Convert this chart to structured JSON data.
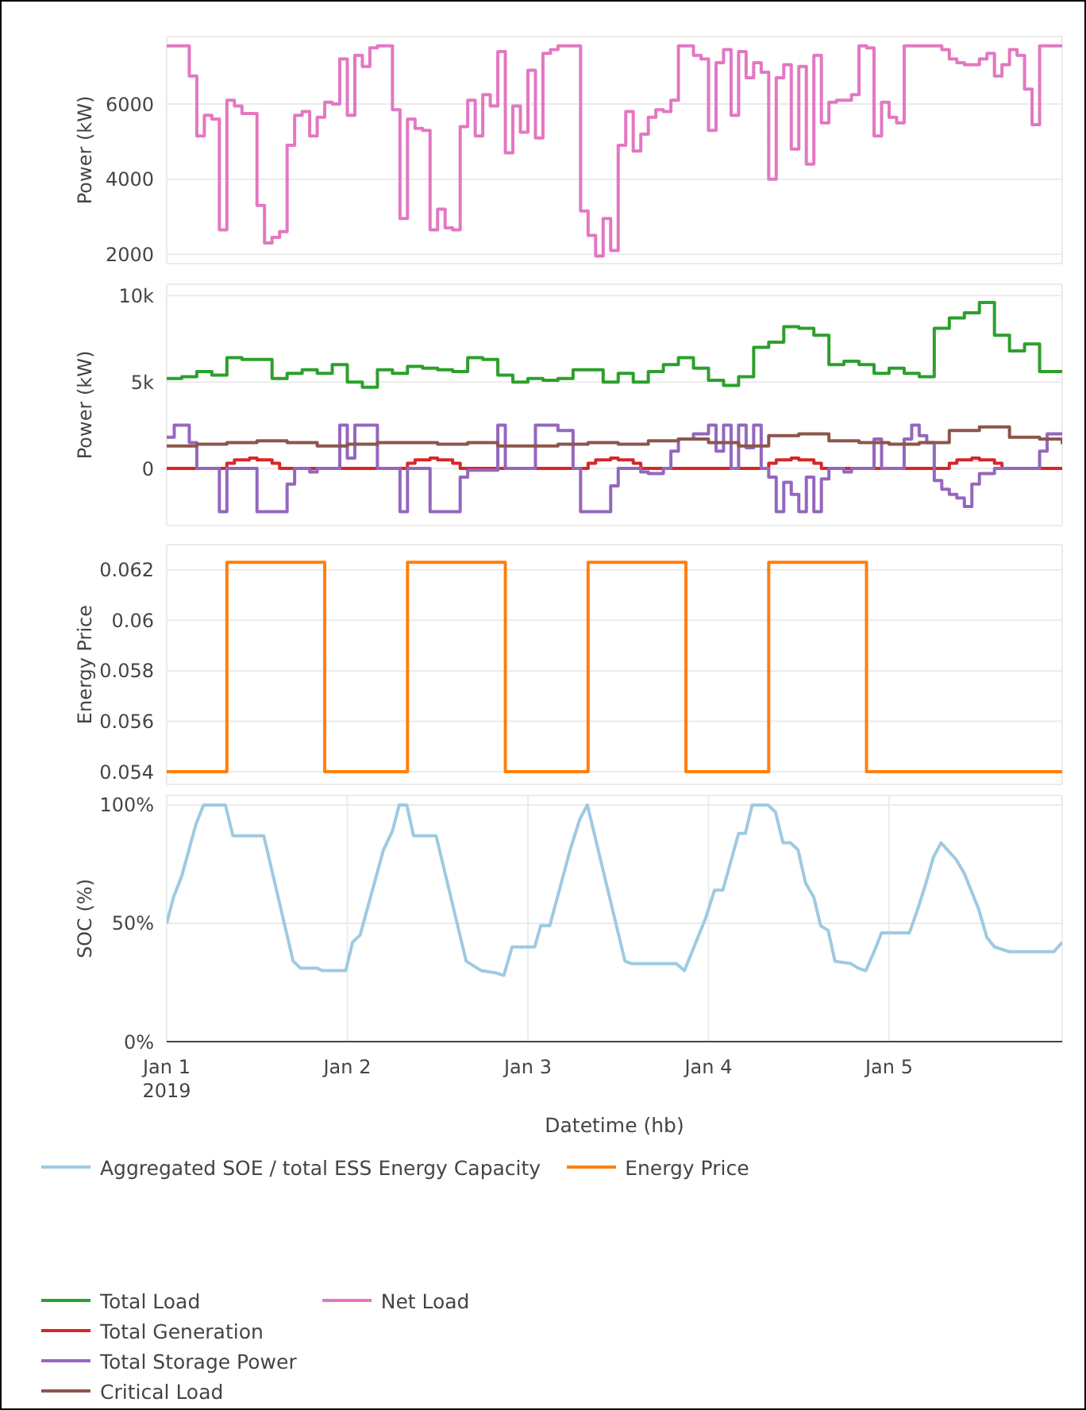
{
  "chart_data": [
    {
      "type": "step",
      "ylabel": "Power (kW)",
      "x": [
        "2019-01-01T00:00",
        "2019-01-01T01:00",
        "2019-01-01T02:00",
        "2019-01-01T03:00",
        "2019-01-01T04:00",
        "2019-01-01T05:00",
        "2019-01-01T06:00",
        "2019-01-01T07:00",
        "2019-01-01T08:00",
        "2019-01-01T09:00",
        "2019-01-01T10:00",
        "2019-01-01T11:00",
        "2019-01-01T12:00",
        "2019-01-01T13:00",
        "2019-01-01T14:00",
        "2019-01-01T15:00",
        "2019-01-01T16:00",
        "2019-01-01T17:00",
        "2019-01-01T18:00",
        "2019-01-01T19:00",
        "2019-01-01T20:00",
        "2019-01-01T21:00",
        "2019-01-01T22:00",
        "2019-01-01T23:00",
        "2019-01-02T00:00",
        "2019-01-02T01:00",
        "2019-01-02T02:00",
        "2019-01-02T03:00",
        "2019-01-02T04:00",
        "2019-01-02T05:00",
        "2019-01-02T06:00",
        "2019-01-02T07:00",
        "2019-01-02T08:00",
        "2019-01-02T09:00",
        "2019-01-02T10:00",
        "2019-01-02T11:00",
        "2019-01-02T12:00",
        "2019-01-02T13:00",
        "2019-01-02T14:00",
        "2019-01-02T15:00",
        "2019-01-02T16:00",
        "2019-01-02T17:00",
        "2019-01-02T18:00",
        "2019-01-02T19:00",
        "2019-01-02T20:00",
        "2019-01-02T21:00",
        "2019-01-02T22:00",
        "2019-01-02T23:00",
        "2019-01-03T00:00",
        "2019-01-03T01:00",
        "2019-01-03T02:00",
        "2019-01-03T03:00",
        "2019-01-03T04:00",
        "2019-01-03T05:00",
        "2019-01-03T06:00",
        "2019-01-03T07:00",
        "2019-01-03T08:00",
        "2019-01-03T09:00",
        "2019-01-03T10:00",
        "2019-01-03T11:00",
        "2019-01-03T12:00",
        "2019-01-03T13:00",
        "2019-01-03T14:00",
        "2019-01-03T15:00",
        "2019-01-03T16:00",
        "2019-01-03T17:00",
        "2019-01-03T18:00",
        "2019-01-03T19:00",
        "2019-01-03T20:00",
        "2019-01-03T21:00",
        "2019-01-03T22:00",
        "2019-01-03T23:00",
        "2019-01-04T00:00",
        "2019-01-04T01:00",
        "2019-01-04T02:00",
        "2019-01-04T03:00",
        "2019-01-04T04:00",
        "2019-01-04T05:00",
        "2019-01-04T06:00",
        "2019-01-04T07:00",
        "2019-01-04T08:00",
        "2019-01-04T09:00",
        "2019-01-04T10:00",
        "2019-01-04T11:00",
        "2019-01-04T12:00",
        "2019-01-04T13:00",
        "2019-01-04T14:00",
        "2019-01-04T15:00",
        "2019-01-04T16:00",
        "2019-01-04T17:00",
        "2019-01-04T18:00",
        "2019-01-04T19:00",
        "2019-01-04T20:00",
        "2019-01-04T21:00",
        "2019-01-04T22:00",
        "2019-01-04T23:00",
        "2019-01-05T00:00",
        "2019-01-05T01:00",
        "2019-01-05T02:00",
        "2019-01-05T03:00",
        "2019-01-05T04:00",
        "2019-01-05T05:00",
        "2019-01-05T06:00",
        "2019-01-05T07:00",
        "2019-01-05T08:00",
        "2019-01-05T09:00",
        "2019-01-05T10:00",
        "2019-01-05T11:00",
        "2019-01-05T12:00",
        "2019-01-05T13:00",
        "2019-01-05T14:00",
        "2019-01-05T15:00",
        "2019-01-05T16:00",
        "2019-01-05T17:00",
        "2019-01-05T18:00",
        "2019-01-05T19:00",
        "2019-01-05T20:00",
        "2019-01-05T21:00",
        "2019-01-05T22:00",
        "2019-01-05T23:00"
      ],
      "series": [
        {
          "name": "Net Load",
          "color": "#e377c2",
          "values": [
            7550,
            7550,
            7550,
            6750,
            5150,
            5700,
            5600,
            2650,
            6100,
            5950,
            5750,
            5750,
            3300,
            2300,
            2450,
            2600,
            4900,
            5700,
            5800,
            5150,
            5650,
            6050,
            6000,
            7200,
            5700,
            7300,
            7000,
            7500,
            7550,
            7550,
            5850,
            2950,
            5600,
            5350,
            5300,
            2650,
            3200,
            2700,
            2650,
            5400,
            6100,
            5150,
            6250,
            5950,
            7400,
            4700,
            5950,
            5250,
            6900,
            5100,
            7350,
            7450,
            7550,
            7550,
            7550,
            3150,
            2500,
            1950,
            2950,
            2100,
            4900,
            5800,
            4750,
            5200,
            5650,
            5850,
            5800,
            6100,
            7550,
            7550,
            7300,
            7200,
            5300,
            7100,
            7450,
            5700,
            7400,
            6700,
            7100,
            6850,
            4000,
            6700,
            7050,
            4800,
            7000,
            4400,
            7300,
            5500,
            6050,
            6100,
            6100,
            6250,
            7550,
            7500,
            5150,
            6050,
            5650,
            5500,
            7550,
            7550,
            7550,
            7550,
            7550,
            7450,
            7200,
            7100,
            7050,
            7050,
            7200,
            7350,
            6750,
            7050,
            7450,
            7300,
            6400,
            5450,
            7550,
            7550,
            7550,
            7550
          ]
        }
      ],
      "xlim": [
        "2019-01-01T00:00",
        "2019-01-05T23:00"
      ],
      "xticks": [
        {
          "value": "2019-01-01",
          "label": null
        },
        {
          "value": "2019-01-02",
          "label": null
        },
        {
          "value": "2019-01-03",
          "label": null
        },
        {
          "value": "2019-01-04",
          "label": null
        },
        {
          "value": "2019-01-05",
          "label": null
        }
      ],
      "ylim": [
        1750,
        7800
      ],
      "yticks": [
        2000,
        4000,
        6000
      ],
      "grid": true,
      "legend": "bottom",
      "tick_labels": "y"
    },
    {
      "type": "step",
      "ylabel": "Power (kW)",
      "series": [
        {
          "name": "Total Load",
          "color": "#2ca02c",
          "x": [
            "2019-01-01T00:00",
            "2019-01-01T02:00",
            "2019-01-01T04:00",
            "2019-01-01T06:00",
            "2019-01-01T08:00",
            "2019-01-01T10:00",
            "2019-01-01T12:00",
            "2019-01-01T14:00",
            "2019-01-01T16:00",
            "2019-01-01T18:00",
            "2019-01-01T20:00",
            "2019-01-01T22:00",
            "2019-01-02T00:00",
            "2019-01-02T02:00",
            "2019-01-02T04:00",
            "2019-01-02T06:00",
            "2019-01-02T08:00",
            "2019-01-02T10:00",
            "2019-01-02T12:00",
            "2019-01-02T14:00",
            "2019-01-02T16:00",
            "2019-01-02T18:00",
            "2019-01-02T20:00",
            "2019-01-02T22:00",
            "2019-01-03T00:00",
            "2019-01-03T02:00",
            "2019-01-03T04:00",
            "2019-01-03T06:00",
            "2019-01-03T08:00",
            "2019-01-03T10:00",
            "2019-01-03T12:00",
            "2019-01-03T14:00",
            "2019-01-03T16:00",
            "2019-01-03T18:00",
            "2019-01-03T20:00",
            "2019-01-03T22:00",
            "2019-01-04T00:00",
            "2019-01-04T02:00",
            "2019-01-04T04:00",
            "2019-01-04T06:00",
            "2019-01-04T08:00",
            "2019-01-04T10:00",
            "2019-01-04T12:00",
            "2019-01-04T14:00",
            "2019-01-04T16:00",
            "2019-01-04T18:00",
            "2019-01-04T20:00",
            "2019-01-04T22:00",
            "2019-01-05T00:00",
            "2019-01-05T02:00",
            "2019-01-05T04:00",
            "2019-01-05T06:00",
            "2019-01-05T08:00",
            "2019-01-05T10:00",
            "2019-01-05T12:00",
            "2019-01-05T14:00",
            "2019-01-05T16:00",
            "2019-01-05T18:00",
            "2019-01-05T20:00",
            "2019-01-05T22:00",
            "2019-01-05T23:00"
          ],
          "values": [
            5200,
            5300,
            5600,
            5400,
            6400,
            6300,
            6300,
            5200,
            5500,
            5700,
            5500,
            6000,
            5000,
            4700,
            5700,
            5500,
            5900,
            5800,
            5700,
            5600,
            6400,
            6300,
            5400,
            5000,
            5200,
            5100,
            5200,
            5700,
            5700,
            5000,
            5500,
            5000,
            5600,
            6000,
            6400,
            5800,
            5100,
            4800,
            5300,
            7000,
            7300,
            8200,
            8100,
            7700,
            6000,
            6200,
            6000,
            5500,
            5800,
            5500,
            5300,
            8100,
            8700,
            9000,
            9600,
            7700,
            6800,
            7200,
            5600,
            5600,
            5600
          ]
        },
        {
          "name": "Total Generation",
          "color": "#d62728",
          "x": [
            "2019-01-01T00:00",
            "2019-01-01T08:00",
            "2019-01-01T09:00",
            "2019-01-01T10:00",
            "2019-01-01T11:00",
            "2019-01-01T12:00",
            "2019-01-01T13:00",
            "2019-01-01T14:00",
            "2019-01-01T15:00",
            "2019-01-02T08:00",
            "2019-01-02T09:00",
            "2019-01-02T10:00",
            "2019-01-02T11:00",
            "2019-01-02T12:00",
            "2019-01-02T13:00",
            "2019-01-02T14:00",
            "2019-01-02T15:00",
            "2019-01-03T08:00",
            "2019-01-03T09:00",
            "2019-01-03T10:00",
            "2019-01-03T11:00",
            "2019-01-03T12:00",
            "2019-01-03T13:00",
            "2019-01-03T14:00",
            "2019-01-03T15:00",
            "2019-01-04T08:00",
            "2019-01-04T09:00",
            "2019-01-04T10:00",
            "2019-01-04T11:00",
            "2019-01-04T12:00",
            "2019-01-04T13:00",
            "2019-01-04T14:00",
            "2019-01-04T15:00",
            "2019-01-05T08:00",
            "2019-01-05T09:00",
            "2019-01-05T10:00",
            "2019-01-05T11:00",
            "2019-01-05T12:00",
            "2019-01-05T13:00",
            "2019-01-05T14:00",
            "2019-01-05T15:00",
            "2019-01-05T23:00"
          ],
          "values": [
            0,
            300,
            500,
            500,
            600,
            500,
            500,
            300,
            0,
            300,
            500,
            500,
            600,
            500,
            500,
            300,
            0,
            300,
            500,
            500,
            600,
            500,
            500,
            300,
            0,
            300,
            500,
            500,
            600,
            500,
            500,
            300,
            0,
            300,
            500,
            500,
            600,
            500,
            500,
            300,
            0,
            0
          ]
        },
        {
          "name": "Total Storage Power",
          "color": "#9467bd",
          "x": [
            "2019-01-01T00:00",
            "2019-01-01T01:00",
            "2019-01-01T03:00",
            "2019-01-01T04:00",
            "2019-01-01T07:00",
            "2019-01-01T08:00",
            "2019-01-01T12:00",
            "2019-01-01T16:00",
            "2019-01-01T17:00",
            "2019-01-01T19:00",
            "2019-01-01T20:00",
            "2019-01-01T23:00",
            "2019-01-02T00:00",
            "2019-01-02T01:00",
            "2019-01-02T04:00",
            "2019-01-02T07:00",
            "2019-01-02T08:00",
            "2019-01-02T11:00",
            "2019-01-02T15:00",
            "2019-01-02T16:00",
            "2019-01-02T20:00",
            "2019-01-02T21:00",
            "2019-01-03T01:00",
            "2019-01-03T04:00",
            "2019-01-03T06:00",
            "2019-01-03T07:00",
            "2019-01-03T11:00",
            "2019-01-03T12:00",
            "2019-01-03T15:00",
            "2019-01-03T16:00",
            "2019-01-03T18:00",
            "2019-01-03T19:00",
            "2019-01-03T20:00",
            "2019-01-03T22:00",
            "2019-01-04T00:00",
            "2019-01-04T01:00",
            "2019-01-04T02:00",
            "2019-01-04T03:00",
            "2019-01-04T04:00",
            "2019-01-04T05:00",
            "2019-01-04T06:00",
            "2019-01-04T07:00",
            "2019-01-04T08:00",
            "2019-01-04T09:00",
            "2019-01-04T10:00",
            "2019-01-04T11:00",
            "2019-01-04T12:00",
            "2019-01-04T13:00",
            "2019-01-04T14:00",
            "2019-01-04T15:00",
            "2019-01-04T16:00",
            "2019-01-04T18:00",
            "2019-01-04T19:00",
            "2019-01-04T22:00",
            "2019-01-04T23:00",
            "2019-01-05T02:00",
            "2019-01-05T03:00",
            "2019-01-05T04:00",
            "2019-01-05T05:00",
            "2019-01-05T06:00",
            "2019-01-05T07:00",
            "2019-01-05T08:00",
            "2019-01-05T09:00",
            "2019-01-05T10:00",
            "2019-01-05T11:00",
            "2019-01-05T12:00",
            "2019-01-05T14:00",
            "2019-01-05T20:00",
            "2019-01-05T21:00",
            "2019-01-05T23:00"
          ],
          "values": [
            1800,
            2500,
            1500,
            0,
            -2500,
            0,
            -2500,
            -900,
            0,
            -200,
            0,
            2500,
            600,
            2500,
            0,
            -2500,
            0,
            -2500,
            -500,
            -100,
            2500,
            0,
            2500,
            2200,
            0,
            -2500,
            -1000,
            0,
            -200,
            -300,
            0,
            1000,
            1700,
            2000,
            2500,
            1000,
            2500,
            0,
            2500,
            1200,
            2500,
            0,
            -500,
            -2500,
            -800,
            -1500,
            -2500,
            -500,
            -2500,
            -600,
            0,
            -200,
            0,
            1700,
            0,
            1700,
            2500,
            1900,
            1500,
            -700,
            -1200,
            -1500,
            -1700,
            -2200,
            -900,
            -300,
            0,
            1000,
            2000,
            2000
          ]
        },
        {
          "name": "Critical Load",
          "color": "#8c564b",
          "x": [
            "2019-01-01T00:00",
            "2019-01-01T04:00",
            "2019-01-01T08:00",
            "2019-01-01T12:00",
            "2019-01-01T16:00",
            "2019-01-01T20:00",
            "2019-01-02T00:00",
            "2019-01-02T04:00",
            "2019-01-02T08:00",
            "2019-01-02T12:00",
            "2019-01-02T16:00",
            "2019-01-02T20:00",
            "2019-01-03T00:00",
            "2019-01-03T04:00",
            "2019-01-03T08:00",
            "2019-01-03T12:00",
            "2019-01-03T16:00",
            "2019-01-03T20:00",
            "2019-01-04T00:00",
            "2019-01-04T04:00",
            "2019-01-04T08:00",
            "2019-01-04T12:00",
            "2019-01-04T16:00",
            "2019-01-04T20:00",
            "2019-01-05T00:00",
            "2019-01-05T04:00",
            "2019-01-05T08:00",
            "2019-01-05T12:00",
            "2019-01-05T16:00",
            "2019-01-05T20:00",
            "2019-01-05T23:00"
          ],
          "values": [
            1300,
            1400,
            1500,
            1600,
            1500,
            1300,
            1400,
            1500,
            1500,
            1400,
            1500,
            1300,
            1300,
            1400,
            1500,
            1400,
            1600,
            1700,
            1500,
            1300,
            1900,
            2000,
            1600,
            1500,
            1400,
            1500,
            2200,
            2400,
            1800,
            1700,
            1400
          ]
        }
      ],
      "xlim": [
        "2019-01-01T00:00",
        "2019-01-05T23:00"
      ],
      "xticks": [
        {
          "value": "2019-01-01",
          "label": null
        },
        {
          "value": "2019-01-02",
          "label": null
        },
        {
          "value": "2019-01-03",
          "label": null
        },
        {
          "value": "2019-01-04",
          "label": null
        },
        {
          "value": "2019-01-05",
          "label": null
        }
      ],
      "ylim": [
        -3300,
        10650
      ],
      "yticks": [
        {
          "value": 0,
          "label": "0"
        },
        {
          "value": 5000,
          "label": "5k"
        },
        {
          "value": 10000,
          "label": "10k"
        }
      ],
      "grid": true,
      "legend": "bottom",
      "tick_labels": "y"
    },
    {
      "type": "step",
      "ylabel": "Energy Price",
      "series": [
        {
          "name": "Energy Price",
          "color": "#ff7f0e",
          "x": [
            "2019-01-01T00:00",
            "2019-01-01T08:00",
            "2019-01-01T21:00",
            "2019-01-02T08:00",
            "2019-01-02T21:00",
            "2019-01-03T08:00",
            "2019-01-03T21:00",
            "2019-01-04T08:00",
            "2019-01-04T21:00",
            "2019-01-05T23:00"
          ],
          "values": [
            0.054,
            0.0623,
            0.054,
            0.0623,
            0.054,
            0.0623,
            0.054,
            0.0623,
            0.054,
            0.054
          ]
        }
      ],
      "xlim": [
        "2019-01-01T00:00",
        "2019-01-05T23:00"
      ],
      "xticks": [
        {
          "value": "2019-01-01",
          "label": null
        },
        {
          "value": "2019-01-02",
          "label": null
        },
        {
          "value": "2019-01-03",
          "label": null
        },
        {
          "value": "2019-01-04",
          "label": null
        },
        {
          "value": "2019-01-05",
          "label": null
        }
      ],
      "ylim": [
        0.0535,
        0.063
      ],
      "yticks": [
        0.054,
        0.056,
        0.058,
        0.06,
        0.062
      ],
      "grid": true,
      "legend": "bottom",
      "tick_labels": "y"
    },
    {
      "type": "line",
      "ylabel": "SOC (%)",
      "xlabel": "Datetime (hb)",
      "series": [
        {
          "name": "Aggregated SOE / total ESS Energy Capacity",
          "color": "#9ecae1",
          "x": [
            "2019-01-01T00:00",
            "2019-01-01T00:54",
            "2019-01-01T02:00",
            "2019-01-01T03:54",
            "2019-01-01T04:54",
            "2019-01-01T07:48",
            "2019-01-01T08:48",
            "2019-01-01T12:54",
            "2019-01-01T16:48",
            "2019-01-01T17:48",
            "2019-01-01T20:00",
            "2019-01-01T20:42",
            "2019-01-01T23:48",
            "2019-01-02T00:42",
            "2019-01-02T01:42",
            "2019-01-02T04:48",
            "2019-01-02T06:00",
            "2019-01-02T06:54",
            "2019-01-02T07:54",
            "2019-01-02T08:48",
            "2019-01-02T11:48",
            "2019-01-02T15:48",
            "2019-01-02T17:48",
            "2019-01-02T19:48",
            "2019-01-02T20:48",
            "2019-01-02T21:54",
            "2019-01-03T00:54",
            "2019-01-03T01:42",
            "2019-01-03T02:54",
            "2019-01-03T05:42",
            "2019-01-03T06:54",
            "2019-01-03T07:54",
            "2019-01-03T12:54",
            "2019-01-03T13:42",
            "2019-01-03T19:42",
            "2019-01-03T20:48",
            "2019-01-03T23:36",
            "2019-01-04T00:48",
            "2019-01-04T01:54",
            "2019-01-04T04:00",
            "2019-01-04T04:54",
            "2019-01-04T05:48",
            "2019-01-04T07:54",
            "2019-01-04T08:54",
            "2019-01-04T09:54",
            "2019-01-04T10:54",
            "2019-01-04T11:54",
            "2019-01-04T12:54",
            "2019-01-04T14:00",
            "2019-01-04T14:54",
            "2019-01-04T15:54",
            "2019-01-04T16:48",
            "2019-01-04T18:54",
            "2019-01-04T19:54",
            "2019-01-04T20:54",
            "2019-01-04T22:00",
            "2019-01-04T23:00",
            "2019-01-05T02:42",
            "2019-01-05T03:48",
            "2019-01-05T04:54",
            "2019-01-05T05:54",
            "2019-01-05T06:54",
            "2019-01-05T08:54",
            "2019-01-05T10:00",
            "2019-01-05T11:54",
            "2019-01-05T13:00",
            "2019-01-05T14:00",
            "2019-01-05T16:00",
            "2019-01-05T21:54",
            "2019-01-05T23:00"
          ],
          "values": [
            50,
            61,
            70,
            92,
            100,
            100,
            87,
            87,
            34,
            31,
            31,
            30,
            30,
            42,
            45,
            81,
            89,
            100,
            100,
            87,
            87,
            34,
            30,
            29,
            28,
            40,
            40,
            49,
            49,
            82,
            94,
            100,
            34,
            33,
            33,
            30,
            52,
            64,
            64,
            88,
            88,
            100,
            100,
            97,
            84,
            84,
            81,
            67,
            61,
            49,
            47,
            34,
            33,
            31,
            30,
            38,
            46,
            46,
            56,
            67,
            78,
            84,
            77,
            71,
            56,
            44,
            40,
            38,
            38,
            42
          ]
        }
      ],
      "xlim": [
        "2019-01-01T00:00",
        "2019-01-05T23:00"
      ],
      "xticks": [
        {
          "value": "2019-01-01",
          "label": "Jan 1\n2019"
        },
        {
          "value": "2019-01-02",
          "label": "Jan 2"
        },
        {
          "value": "2019-01-03",
          "label": "Jan 3"
        },
        {
          "value": "2019-01-04",
          "label": "Jan 4"
        },
        {
          "value": "2019-01-05",
          "label": "Jan 5"
        }
      ],
      "ylim": [
        0,
        104
      ],
      "yticks": [
        {
          "value": 0,
          "label": "0%"
        },
        {
          "value": 50,
          "label": "50%"
        },
        {
          "value": 100,
          "label": "100%"
        }
      ],
      "grid": true,
      "legend": "bottom"
    }
  ]
}
